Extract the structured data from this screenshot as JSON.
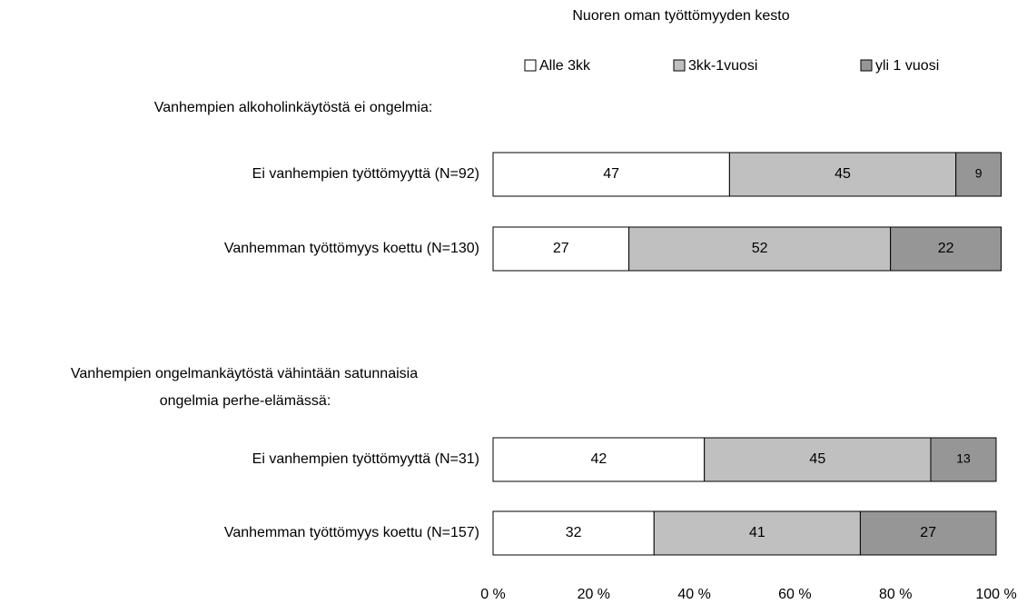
{
  "chart_data": {
    "type": "stacked_barh",
    "legend_title": "Nuoren oman työttömyyden kesto",
    "groups": [
      {
        "label": [
          "Vanhempien alkoholinkäytöstä ei ongelmia:"
        ]
      },
      {
        "label": [
          "Vanhempien ongelmankäytöstä vähintään satunnaisia",
          "ongelmia perhe-elämässä:"
        ]
      }
    ],
    "categories": [
      "Ei vanhempien työttömyyttä (N=92)",
      "Vanhemman työttömyys koettu (N=130)",
      "Ei vanhempien työttömyyttä (N=31)",
      "Vanhemman työttömyys koettu (N=157)"
    ],
    "series": [
      {
        "name": "Alle 3kk",
        "color": "#ffffff",
        "values": [
          47,
          27,
          42,
          32
        ]
      },
      {
        "name": "3kk-1vuosi",
        "color": "#c0c0c0",
        "values": [
          45,
          52,
          45,
          41
        ]
      },
      {
        "name": "yli 1 vuosi",
        "color": "#969696",
        "values": [
          9,
          22,
          13,
          27
        ]
      }
    ],
    "xlim": [
      0,
      100
    ],
    "xticks": [
      {
        "value": 0,
        "label": "0 %"
      },
      {
        "value": 20,
        "label": "20 %"
      },
      {
        "value": 40,
        "label": "40 %"
      },
      {
        "value": 60,
        "label": "60 %"
      },
      {
        "value": 80,
        "label": "80 %"
      },
      {
        "value": 100,
        "label": "100 %"
      }
    ],
    "legend": "top"
  }
}
